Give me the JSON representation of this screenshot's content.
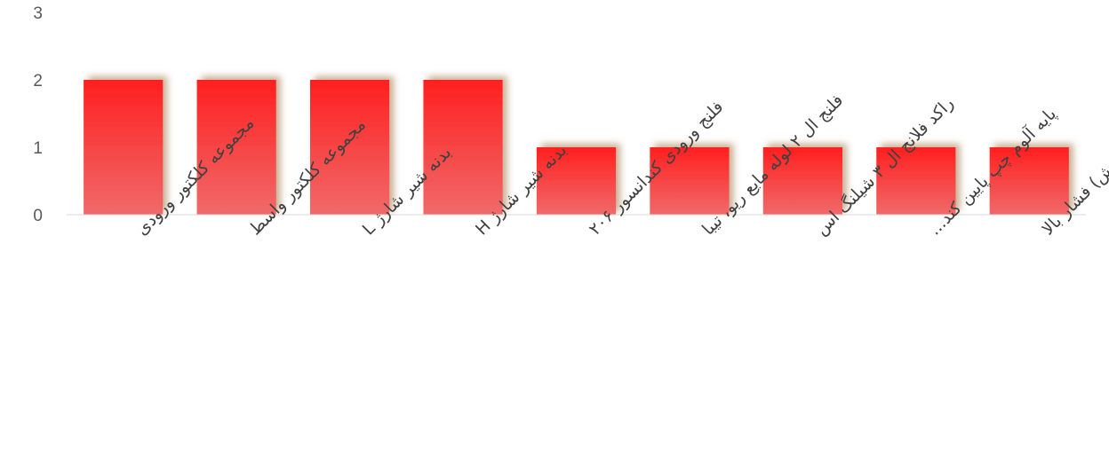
{
  "chart_data": {
    "type": "bar",
    "title": "",
    "xlabel": "",
    "ylabel": "",
    "ylim": [
      0,
      3
    ],
    "yticks": [
      0,
      1,
      2,
      3
    ],
    "grid": false,
    "legend": "none",
    "bar_color": "#ff1f1f",
    "bar_color_light": "#f06a6a",
    "shadow_color": "#c0a080",
    "categories": [
      "مجموعه کلکتور ورودی",
      "مجموعه کلکتور واسط",
      "بدنه شیر شارژ L",
      "بدنه شیر شارژ H",
      "فلنج ورودی کندانسور ۲۰۶",
      "فلنج ال ۲ لوله مایع ریو، تیبا",
      "راکد فلانج ال ۳ شیلنگ اس",
      "پایه آلوم چپ پایین کند...",
      "بست(بوش) فشار بالا"
    ],
    "values": [
      2,
      2,
      2,
      2,
      1,
      1,
      1,
      1,
      1
    ]
  }
}
